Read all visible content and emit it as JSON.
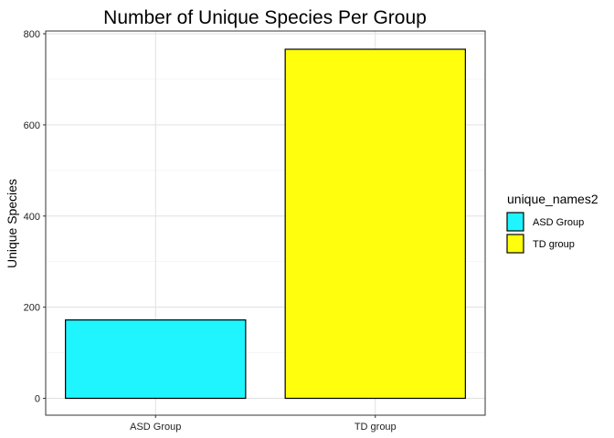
{
  "chart_data": {
    "type": "bar",
    "title": "Number of Unique Species Per Group",
    "xlabel": "",
    "ylabel": "Unique Species",
    "categories": [
      "ASD Group",
      "TD group"
    ],
    "values": [
      172,
      766
    ],
    "colors": [
      "#1ff5ff",
      "#ffff0d"
    ],
    "ylim": [
      -37,
      800
    ],
    "yticks": [
      0,
      200,
      400,
      600,
      800
    ],
    "grid": true,
    "legend": {
      "title": "unique_names2",
      "placement": "right",
      "entries": [
        "ASD Group",
        "TD group"
      ]
    }
  }
}
